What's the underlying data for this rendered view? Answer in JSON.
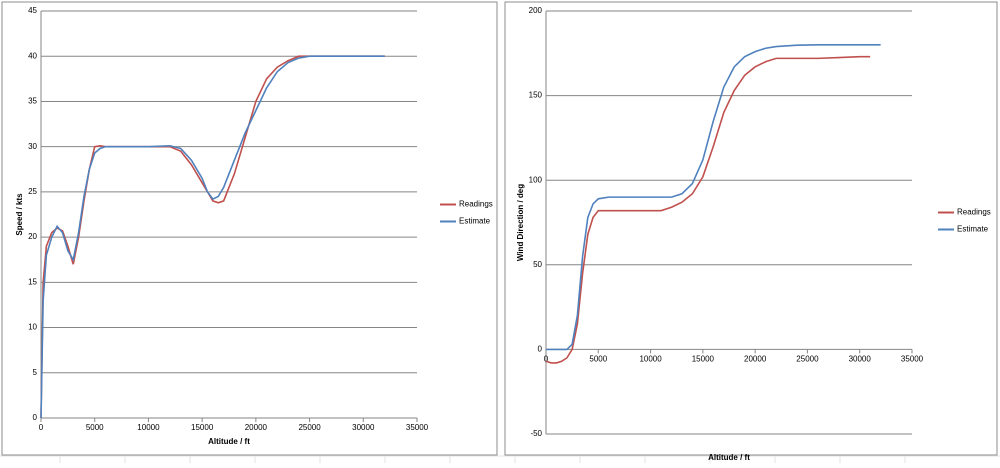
{
  "chart_data": [
    {
      "type": "line",
      "xlabel": "Altitude / ft",
      "ylabel": "Speed / kts",
      "xlim": [
        0,
        35000
      ],
      "xticks": [
        0,
        5000,
        10000,
        15000,
        20000,
        25000,
        30000,
        35000
      ],
      "ylim": [
        0,
        45
      ],
      "yticks": [
        0,
        5,
        10,
        15,
        20,
        25,
        30,
        35,
        40,
        45
      ],
      "grid": true,
      "legend": "right",
      "series": [
        {
          "name": "Readings",
          "color": "#c0504d",
          "x": [
            0,
            200,
            500,
            1000,
            1500,
            2000,
            2500,
            3000,
            3500,
            4000,
            4500,
            5000,
            5500,
            6000,
            8000,
            10000,
            12000,
            13000,
            14000,
            15000,
            15500,
            16000,
            16500,
            17000,
            18000,
            19000,
            20000,
            21000,
            22000,
            23000,
            24000,
            25000,
            26000,
            28000,
            30000,
            32000
          ],
          "values": [
            0,
            15,
            19,
            20.5,
            21,
            20.7,
            19,
            17,
            20,
            24,
            27.5,
            30,
            30.1,
            30,
            30,
            30,
            30,
            29.5,
            28,
            26,
            25,
            24,
            23.8,
            24,
            27,
            31,
            35,
            37.5,
            38.8,
            39.5,
            40,
            40,
            40,
            40,
            40,
            40
          ]
        },
        {
          "name": "Estimate",
          "color": "#4f81bd",
          "x": [
            0,
            200,
            500,
            1000,
            1500,
            2000,
            2500,
            3000,
            3500,
            4000,
            4500,
            5000,
            5500,
            6000,
            8000,
            10000,
            12000,
            13000,
            14000,
            15000,
            15500,
            16000,
            16500,
            17000,
            18000,
            19000,
            20000,
            21000,
            22000,
            23000,
            24000,
            25000,
            26000,
            28000,
            30000,
            32000
          ],
          "values": [
            0,
            13,
            18,
            20,
            21.2,
            20.5,
            18.5,
            17.5,
            20.5,
            24.5,
            27.5,
            29.3,
            29.8,
            30,
            30,
            30,
            30.1,
            29.8,
            28.5,
            26.5,
            25,
            24.2,
            24.5,
            25.5,
            28.5,
            31.5,
            34,
            36.5,
            38.3,
            39.3,
            39.8,
            40,
            40,
            40,
            40,
            40
          ]
        }
      ]
    },
    {
      "type": "line",
      "xlabel": "Altitude / ft",
      "ylabel": "Wind Direction / deg",
      "xlim": [
        0,
        35000
      ],
      "xticks": [
        0,
        5000,
        10000,
        15000,
        20000,
        25000,
        30000,
        35000
      ],
      "ylim": [
        -50,
        200
      ],
      "yticks": [
        -50,
        0,
        50,
        100,
        150,
        200
      ],
      "grid": true,
      "legend": "right",
      "series": [
        {
          "name": "Readings",
          "color": "#c0504d",
          "x": [
            0,
            500,
            1000,
            1500,
            2000,
            2500,
            3000,
            3500,
            4000,
            4500,
            5000,
            6000,
            8000,
            10000,
            11000,
            12000,
            13000,
            14000,
            15000,
            16000,
            17000,
            18000,
            19000,
            20000,
            21000,
            22000,
            24000,
            26000,
            28000,
            30000,
            31000
          ],
          "values": [
            -7,
            -8,
            -8,
            -7,
            -5,
            0,
            15,
            45,
            68,
            78,
            82,
            82,
            82,
            82,
            82,
            84,
            87,
            92,
            102,
            120,
            140,
            153,
            162,
            167,
            170,
            172,
            172,
            172,
            172.5,
            173,
            173
          ]
        },
        {
          "name": "Estimate",
          "color": "#4f81bd",
          "x": [
            0,
            1000,
            2000,
            2500,
            3000,
            3500,
            4000,
            4500,
            5000,
            6000,
            8000,
            10000,
            12000,
            13000,
            14000,
            15000,
            16000,
            17000,
            18000,
            19000,
            20000,
            21000,
            22000,
            24000,
            26000,
            28000,
            30000,
            32000
          ],
          "values": [
            0,
            0,
            0,
            3,
            20,
            55,
            78,
            86,
            89,
            90,
            90,
            90,
            90,
            92,
            98,
            112,
            135,
            155,
            167,
            173,
            176,
            178,
            179,
            179.8,
            180,
            180,
            180,
            180
          ]
        }
      ]
    }
  ]
}
